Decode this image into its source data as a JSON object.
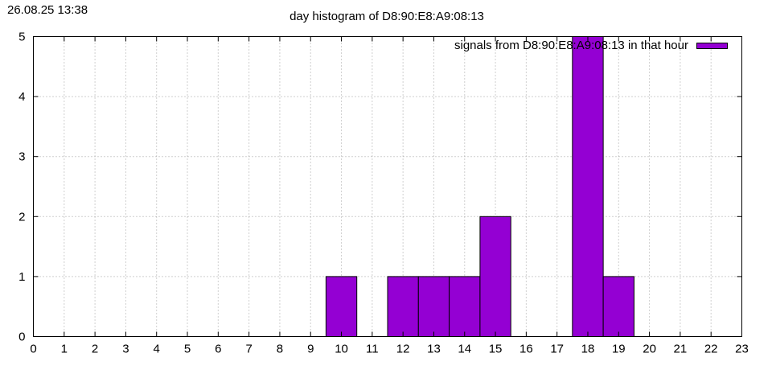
{
  "header": {
    "timestamp": "26.08.25 13:38"
  },
  "chart_data": {
    "type": "bar",
    "title": "day histogram of D8:90:E8:A9:08:13",
    "xlabel": "",
    "ylabel": "",
    "x_ticks": [
      "0",
      "1",
      "2",
      "3",
      "4",
      "5",
      "6",
      "7",
      "8",
      "9",
      "10",
      "11",
      "12",
      "13",
      "14",
      "15",
      "16",
      "17",
      "18",
      "19",
      "20",
      "21",
      "22",
      "23"
    ],
    "y_ticks": [
      "0",
      "1",
      "2",
      "3",
      "4",
      "5"
    ],
    "xlim": [
      0,
      23
    ],
    "ylim": [
      0,
      5
    ],
    "grid": true,
    "legend_position": "top-right",
    "series": [
      {
        "name": "signals from D8:90:E8:A9:08:13 in that hour",
        "color": "#9400d3",
        "points": [
          {
            "x": 10,
            "y": 1
          },
          {
            "x": 12,
            "y": 1
          },
          {
            "x": 13,
            "y": 1
          },
          {
            "x": 14,
            "y": 1
          },
          {
            "x": 15,
            "y": 2
          },
          {
            "x": 18,
            "y": 5
          },
          {
            "x": 19,
            "y": 1
          }
        ]
      }
    ]
  }
}
